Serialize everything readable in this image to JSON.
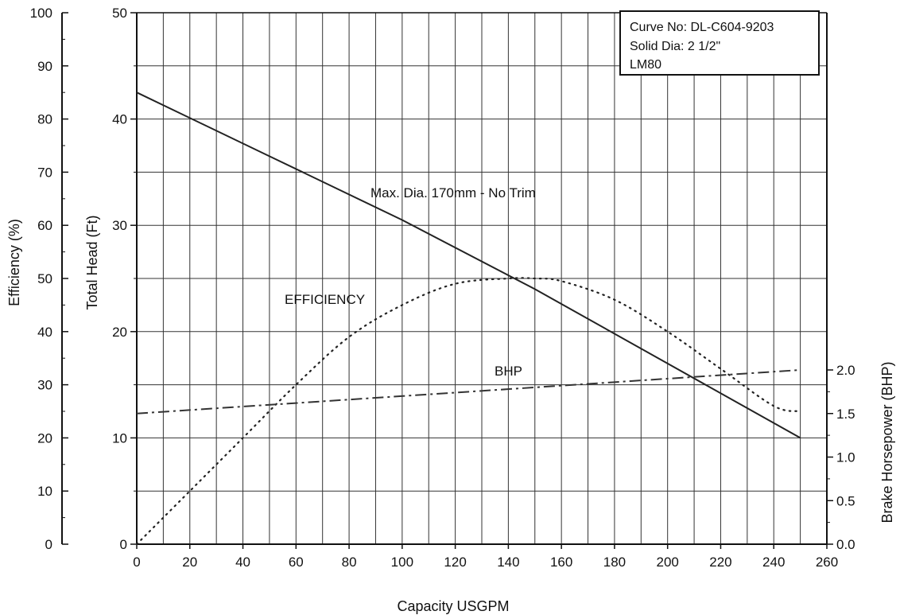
{
  "chart_data": {
    "type": "line",
    "title": "",
    "xlabel": "Capacity USGPM",
    "ylabel_efficiency": "Efficiency (%)",
    "ylabel_head": "Total Head (Ft)",
    "ylabel_bhp": "Brake Horsepower (BHP)",
    "xlim": [
      0,
      260
    ],
    "x_ticks": [
      0,
      20,
      40,
      60,
      80,
      100,
      120,
      140,
      160,
      180,
      200,
      220,
      240,
      260
    ],
    "efficiency_axis": {
      "ylim": [
        0,
        100
      ],
      "ticks": [
        0,
        10,
        20,
        30,
        40,
        50,
        60,
        70,
        80,
        90,
        100
      ]
    },
    "head_axis": {
      "ylim": [
        0,
        50
      ],
      "ticks": [
        0,
        10,
        20,
        30,
        40,
        50
      ]
    },
    "bhp_axis": {
      "ticks": [
        0.0,
        0.5,
        1.0,
        1.5,
        2.0
      ],
      "tick_labels": [
        "0.0",
        "0.5",
        "1.0",
        "1.5",
        "2.0"
      ]
    },
    "grid": true,
    "info_box": {
      "curve_no": "Curve No: DL-C604-9203",
      "solid_dia": "Solid Dia:   2 1/2\"",
      "model": "LM80",
      "placement": "top-right"
    },
    "series": [
      {
        "name": "Max. Dia. 170mm - No Trim",
        "axis": "head",
        "style": "solid",
        "x": [
          0,
          50,
          100,
          150,
          200,
          250
        ],
        "y": [
          42.5,
          36.5,
          30.5,
          24.0,
          17.0,
          10.0
        ]
      },
      {
        "name": "EFFICIENCY",
        "axis": "efficiency",
        "style": "dotted",
        "x": [
          0,
          20,
          40,
          60,
          80,
          100,
          120,
          140,
          150,
          160,
          180,
          200,
          220,
          240,
          250
        ],
        "y": [
          0,
          10,
          20,
          30,
          39,
          45,
          49,
          50,
          50,
          49.5,
          46,
          40,
          33,
          26,
          25
        ]
      },
      {
        "name": "BHP",
        "axis": "bhp",
        "style": "dashdot",
        "x": [
          0,
          250
        ],
        "y": [
          1.5,
          2.0
        ]
      }
    ]
  }
}
